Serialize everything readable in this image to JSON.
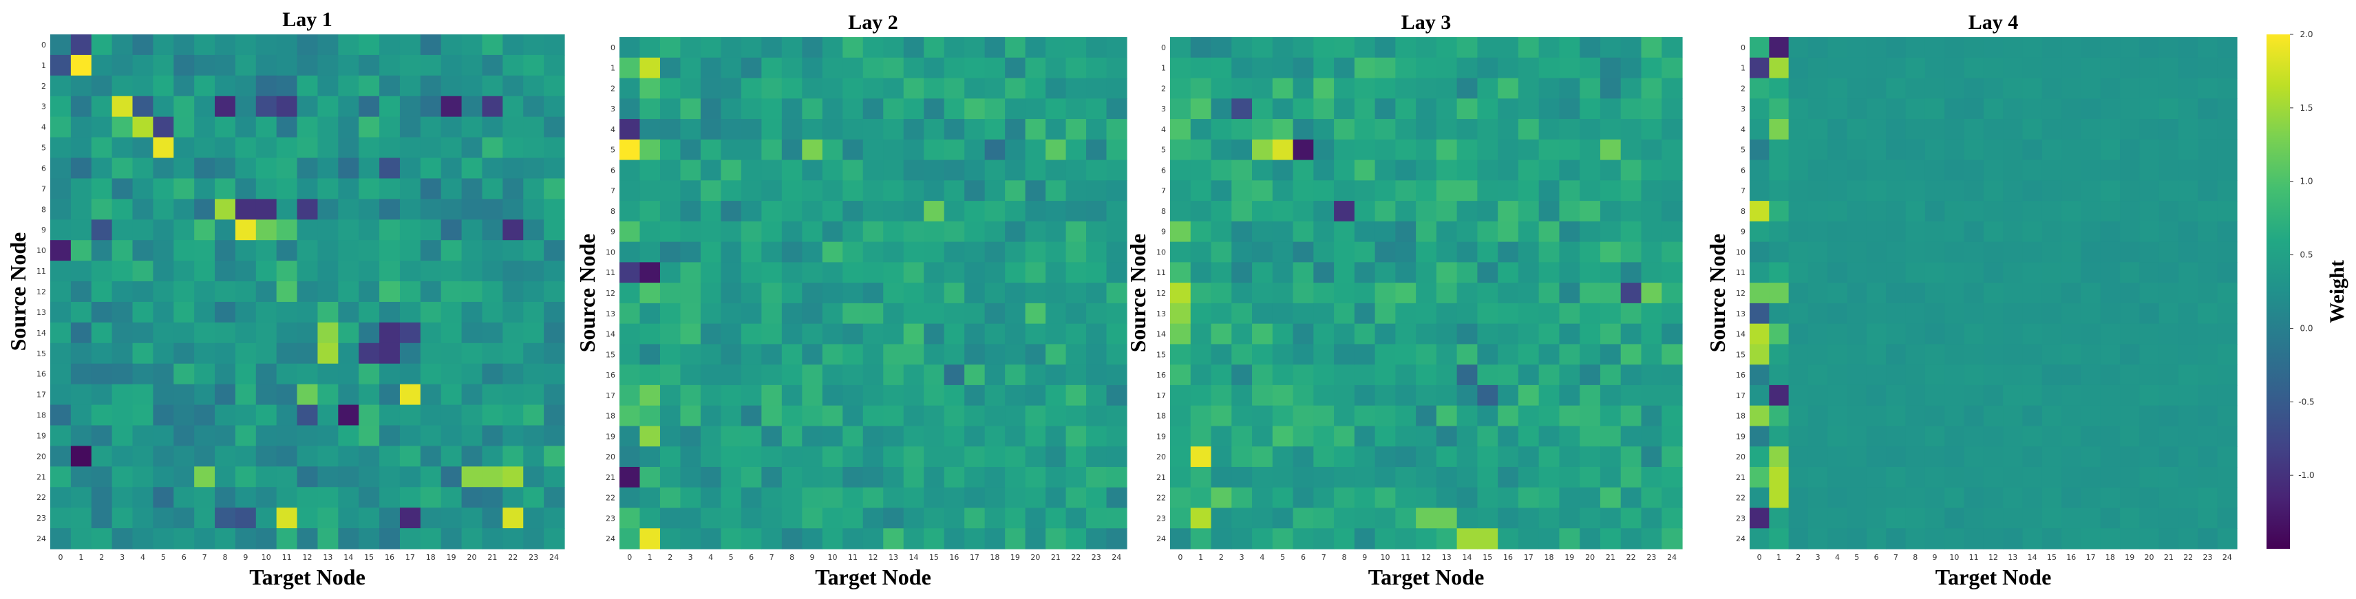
{
  "chart_data": {
    "type": "heatmap",
    "colormap": "viridis",
    "x_ticks": [
      "0",
      "1",
      "2",
      "3",
      "4",
      "5",
      "6",
      "7",
      "8",
      "9",
      "10",
      "11",
      "12",
      "13",
      "14",
      "15",
      "16",
      "17",
      "18",
      "19",
      "20",
      "21",
      "22",
      "23",
      "24"
    ],
    "y_ticks": [
      "0",
      "1",
      "2",
      "3",
      "4",
      "5",
      "6",
      "7",
      "8",
      "9",
      "10",
      "11",
      "12",
      "13",
      "14",
      "15",
      "16",
      "17",
      "18",
      "19",
      "20",
      "21",
      "22",
      "23",
      "24"
    ],
    "colorbar": {
      "label": "Weight",
      "range": [
        -1.5,
        2.0
      ],
      "ticks": [
        {
          "value": 2.0,
          "label": "2.0"
        },
        {
          "value": 1.5,
          "label": "1.5"
        },
        {
          "value": 1.0,
          "label": "1.0"
        },
        {
          "value": 0.5,
          "label": "0.5"
        },
        {
          "value": 0.0,
          "label": "0.0"
        },
        {
          "value": -0.5,
          "label": "-0.5"
        },
        {
          "value": -1.0,
          "label": "-1.0"
        }
      ]
    },
    "panels": [
      {
        "title": "Lay 1",
        "xlabel": "Target Node",
        "ylabel": "Source Node",
        "base": 0.3,
        "noise": 0.35,
        "seed": 11,
        "cells": [
          [
            1,
            1,
            2.0
          ],
          [
            0,
            1,
            -0.8
          ],
          [
            1,
            0,
            -0.6
          ],
          [
            3,
            3,
            1.8
          ],
          [
            4,
            4,
            1.6
          ],
          [
            5,
            5,
            1.9
          ],
          [
            4,
            5,
            -0.8
          ],
          [
            3,
            4,
            -0.5
          ],
          [
            4,
            3,
            0.9
          ],
          [
            3,
            8,
            -1.1
          ],
          [
            3,
            11,
            -0.9
          ],
          [
            3,
            10,
            -0.7
          ],
          [
            3,
            19,
            -1.2
          ],
          [
            3,
            21,
            -0.9
          ],
          [
            8,
            8,
            1.5
          ],
          [
            9,
            9,
            1.9
          ],
          [
            8,
            9,
            -1.0
          ],
          [
            8,
            10,
            -1.0
          ],
          [
            8,
            12,
            -0.9
          ],
          [
            9,
            7,
            0.9
          ],
          [
            9,
            10,
            1.2
          ],
          [
            9,
            11,
            1.0
          ],
          [
            10,
            0,
            -1.2
          ],
          [
            9,
            2,
            -0.6
          ],
          [
            9,
            22,
            -1.0
          ],
          [
            6,
            16,
            -0.6
          ],
          [
            12,
            11,
            1.0
          ],
          [
            12,
            16,
            0.9
          ],
          [
            14,
            13,
            1.4
          ],
          [
            15,
            13,
            1.5
          ],
          [
            14,
            16,
            -1.0
          ],
          [
            15,
            16,
            -1.0
          ],
          [
            14,
            17,
            -0.8
          ],
          [
            15,
            15,
            -0.9
          ],
          [
            17,
            17,
            1.9
          ],
          [
            18,
            14,
            -1.3
          ],
          [
            18,
            12,
            -0.6
          ],
          [
            17,
            12,
            1.2
          ],
          [
            20,
            1,
            -1.4
          ],
          [
            21,
            7,
            1.3
          ],
          [
            21,
            20,
            1.4
          ],
          [
            21,
            21,
            1.4
          ],
          [
            21,
            22,
            1.5
          ],
          [
            23,
            11,
            1.8
          ],
          [
            23,
            17,
            -1.1
          ],
          [
            23,
            22,
            1.8
          ],
          [
            23,
            8,
            -0.5
          ],
          [
            23,
            9,
            -0.6
          ]
        ]
      },
      {
        "title": "Lay 2",
        "xlabel": "Target Node",
        "ylabel": "Source Node",
        "base": 0.45,
        "noise": 0.3,
        "seed": 23,
        "cells": [
          [
            1,
            1,
            1.7
          ],
          [
            1,
            0,
            1.0
          ],
          [
            2,
            1,
            1.0
          ],
          [
            5,
            0,
            2.0
          ],
          [
            5,
            1,
            1.1
          ],
          [
            4,
            0,
            -1.0
          ],
          [
            11,
            1,
            -1.3
          ],
          [
            11,
            0,
            -0.9
          ],
          [
            12,
            1,
            1.0
          ],
          [
            9,
            0,
            1.0
          ],
          [
            21,
            0,
            -1.3
          ],
          [
            23,
            0,
            0.9
          ],
          [
            24,
            1,
            1.9
          ],
          [
            19,
            1,
            1.4
          ],
          [
            17,
            1,
            1.2
          ],
          [
            18,
            0,
            1.0
          ],
          [
            5,
            9,
            1.3
          ],
          [
            5,
            21,
            1.1
          ],
          [
            5,
            18,
            -0.2
          ],
          [
            8,
            15,
            1.2
          ],
          [
            10,
            10,
            0.9
          ],
          [
            16,
            16,
            -0.2
          ],
          [
            13,
            20,
            1.0
          ]
        ]
      },
      {
        "title": "Lay 3",
        "xlabel": "Target Node",
        "ylabel": "Source Node",
        "base": 0.5,
        "noise": 0.32,
        "seed": 37,
        "cells": [
          [
            5,
            5,
            1.8
          ],
          [
            5,
            6,
            -1.3
          ],
          [
            5,
            4,
            1.4
          ],
          [
            3,
            3,
            -0.7
          ],
          [
            3,
            1,
            1.0
          ],
          [
            4,
            0,
            1.0
          ],
          [
            12,
            0,
            1.6
          ],
          [
            13,
            0,
            1.4
          ],
          [
            14,
            0,
            1.2
          ],
          [
            20,
            1,
            1.9
          ],
          [
            23,
            1,
            1.6
          ],
          [
            22,
            2,
            1.1
          ],
          [
            24,
            14,
            1.5
          ],
          [
            24,
            15,
            1.5
          ],
          [
            23,
            12,
            1.2
          ],
          [
            23,
            13,
            1.2
          ],
          [
            8,
            8,
            -1.0
          ],
          [
            12,
            22,
            -0.8
          ],
          [
            12,
            23,
            1.2
          ],
          [
            16,
            14,
            -0.3
          ],
          [
            17,
            15,
            -0.4
          ],
          [
            5,
            21,
            1.2
          ],
          [
            9,
            0,
            1.2
          ]
        ]
      },
      {
        "title": "Lay 4",
        "xlabel": "Target Node",
        "ylabel": "Source Node",
        "base": 0.32,
        "noise": 0.06,
        "seed": 53,
        "col_structured": true,
        "col0": [
          0.7,
          -0.9,
          0.7,
          0.5,
          0.4,
          0.0,
          0.3,
          0.3,
          1.7,
          0.5,
          0.2,
          0.4,
          1.2,
          -0.5,
          1.6,
          1.5,
          0.0,
          0.3,
          1.4,
          0.0,
          0.6,
          1.0,
          0.3,
          -1.1,
          0.4
        ],
        "col1": [
          -1.2,
          1.5,
          0.6,
          0.8,
          1.3,
          0.5,
          0.5,
          0.4,
          0.7,
          0.4,
          0.3,
          0.6,
          1.2,
          0.3,
          1.0,
          0.5,
          0.4,
          -1.1,
          0.8,
          0.5,
          1.4,
          1.6,
          1.6,
          0.5,
          0.6
        ]
      }
    ]
  }
}
